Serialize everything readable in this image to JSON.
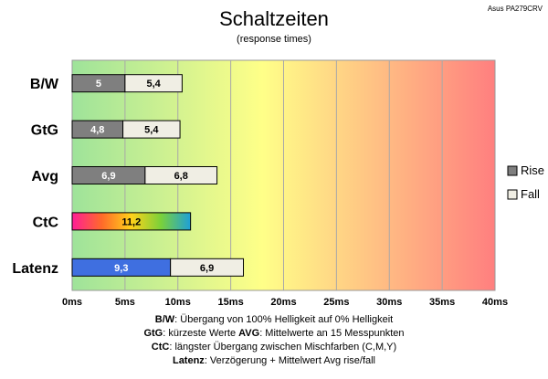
{
  "chart_data": {
    "type": "bar",
    "orientation": "horizontal",
    "stacked": true,
    "title": "Schaltzeiten",
    "subtitle": "(response times)",
    "corner_label": "Asus PA279CRV",
    "categories": [
      "B/W",
      "GtG",
      "Avg",
      "CtC",
      "Latenz"
    ],
    "series": [
      {
        "name": "Rise",
        "values": [
          5,
          4.8,
          6.9,
          11.2,
          9.3
        ],
        "labels": [
          "5",
          "4,8",
          "6,9",
          "11,2",
          "9,3"
        ]
      },
      {
        "name": "Fall",
        "values": [
          5.4,
          5.4,
          6.8,
          null,
          6.9
        ],
        "labels": [
          "5,4",
          "5,4",
          "6,8",
          "",
          "6,9"
        ]
      }
    ],
    "bar_colors": {
      "rise": "#7f7f7f",
      "fall": "#f0eee4",
      "latenz_rise": "#3f6fe0",
      "ctc_gradient": [
        "#ff1e96",
        "#ff6a2a",
        "#ffd21a",
        "#7ad13a",
        "#1ea0d8"
      ]
    },
    "background_gradient": [
      "#9ee39a",
      "#ffff88",
      "#ff7f7f"
    ],
    "xlim": [
      0,
      40
    ],
    "xticks": [
      "0ms",
      "5ms",
      "10ms",
      "15ms",
      "20ms",
      "25ms",
      "30ms",
      "35ms",
      "40ms"
    ],
    "grid": true,
    "legend": {
      "position": "right",
      "entries": [
        "Rise",
        "Fall"
      ]
    }
  },
  "footnotes": [
    {
      "parts": [
        {
          "bold": true,
          "text": "B/W"
        },
        {
          "bold": false,
          "text": ":  Übergang von 100% Helligkeit auf 0% Helligkeit"
        }
      ]
    },
    {
      "parts": [
        {
          "bold": true,
          "text": "GtG"
        },
        {
          "bold": false,
          "text": ": kürzeste  Werte       "
        },
        {
          "bold": true,
          "text": "AVG"
        },
        {
          "bold": false,
          "text": ": Mittelwerte  an 15 Messpunkten"
        }
      ]
    },
    {
      "parts": [
        {
          "bold": true,
          "text": "CtC"
        },
        {
          "bold": false,
          "text": ": längster Übergang  zwischen Mischfarben  (C,M,Y)"
        }
      ]
    },
    {
      "parts": [
        {
          "bold": true,
          "text": "Latenz"
        },
        {
          "bold": false,
          "text": ": Verzögerung  + Mittelwert Avg rise/fall"
        }
      ]
    }
  ]
}
